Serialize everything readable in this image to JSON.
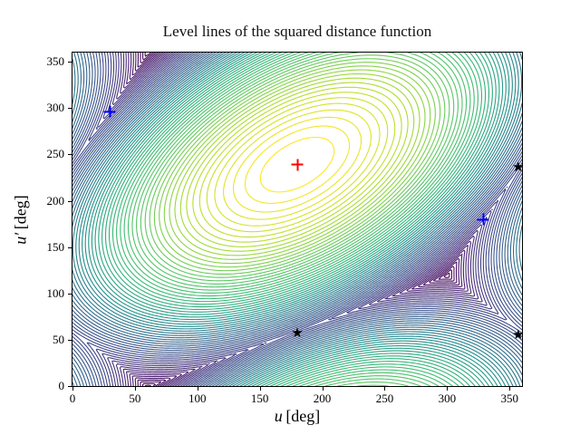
{
  "figure": {
    "background": "#ffffff",
    "spine_color": "#000000"
  },
  "chart_data": {
    "type": "contour",
    "title": "Level lines of the squared distance function",
    "xlabel_var": "u",
    "xlabel_unit": "[deg]",
    "ylabel_var": "u′",
    "ylabel_unit": "[deg]",
    "xlim": [
      0,
      360
    ],
    "ylim": [
      0,
      360
    ],
    "xticks": [
      0,
      50,
      100,
      150,
      200,
      250,
      300,
      350
    ],
    "yticks": [
      0,
      50,
      100,
      150,
      200,
      250,
      300,
      350
    ],
    "grid": false,
    "legend": null,
    "surface_model": {
      "note": "squared toroidal distance estimated from level lines: f(u,v) = min over 360-deg lifts of a*dx^2 + b*dy^2 + c*dx*dy, dx=u-center_x, dy=v-center_y",
      "center": [
        180,
        239
      ],
      "period": 360,
      "a": 1,
      "b": 1,
      "c": -1,
      "max_value": 43200
    },
    "levels": {
      "count": 65,
      "step": 654.545
    },
    "line_width": 1.1,
    "colormap": {
      "name": "viridis reversed (low values yellow at center, high values dark purple)",
      "stops": [
        {
          "t": 0.0,
          "color": "#440154"
        },
        {
          "t": 0.125,
          "color": "#482878"
        },
        {
          "t": 0.25,
          "color": "#3e4989"
        },
        {
          "t": 0.375,
          "color": "#31688e"
        },
        {
          "t": 0.5,
          "color": "#21918c"
        },
        {
          "t": 0.625,
          "color": "#35b779"
        },
        {
          "t": 0.75,
          "color": "#5ec962"
        },
        {
          "t": 0.875,
          "color": "#addc30"
        },
        {
          "t": 1.0,
          "color": "#fde725"
        }
      ]
    },
    "markers": [
      {
        "id": "blue-plus-1",
        "type": "plus",
        "color": "#0000ff",
        "x": 30,
        "y": 296
      },
      {
        "id": "blue-plus-2",
        "type": "plus",
        "color": "#0000ff",
        "x": 329,
        "y": 180
      },
      {
        "id": "red-plus",
        "type": "plus",
        "color": "#ff0000",
        "x": 180,
        "y": 239
      },
      {
        "id": "black-star-1",
        "type": "star",
        "color": "#000000",
        "x": 180,
        "y": 57
      },
      {
        "id": "black-star-2",
        "type": "star",
        "color": "#000000",
        "x": 357,
        "y": 236
      },
      {
        "id": "black-star-3",
        "type": "star",
        "color": "#000000",
        "x": 357,
        "y": 55
      }
    ],
    "star_glyph": "★"
  }
}
